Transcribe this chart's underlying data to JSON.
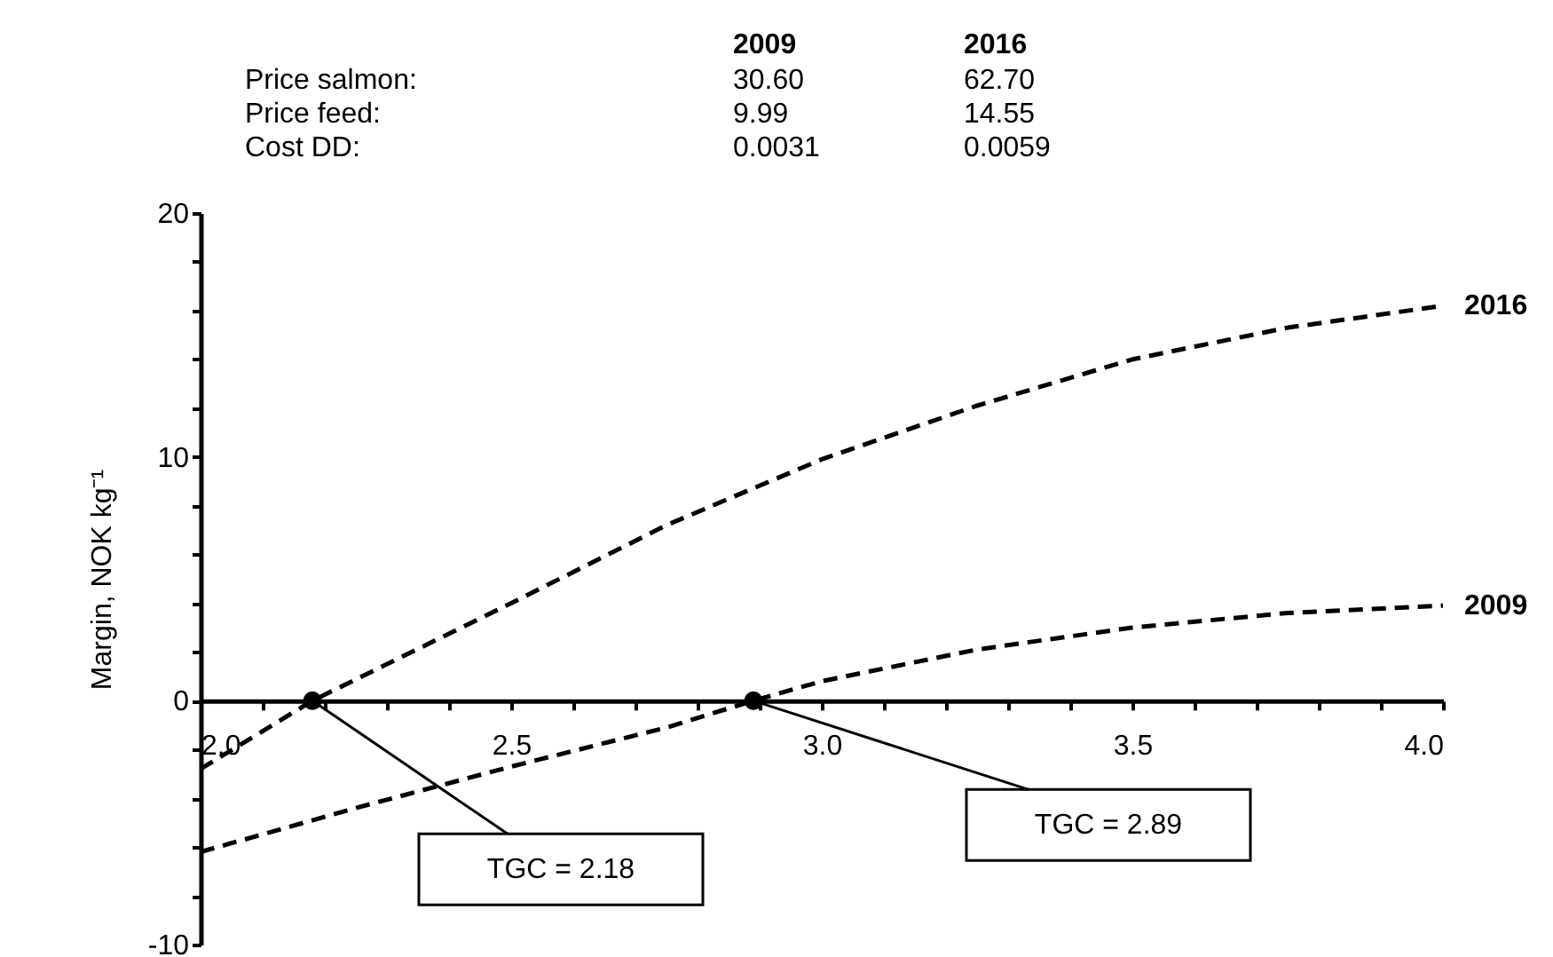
{
  "chart_data": {
    "type": "line",
    "ylabel": "Margin, NOK kg⁻¹",
    "x": [
      2.0,
      2.18,
      2.5,
      2.75,
      3.0,
      3.25,
      3.5,
      3.75,
      4.0
    ],
    "series": [
      {
        "name": "2016",
        "color": "#000000",
        "values": [
          -2.8,
          0,
          4.0,
          7.2,
          9.9,
          12.1,
          14.0,
          15.3,
          16.2
        ]
      },
      {
        "name": "2009",
        "color": "#000000",
        "x": [
          2.0,
          2.25,
          2.5,
          2.75,
          2.89,
          3.0,
          3.25,
          3.5,
          3.75,
          4.0
        ],
        "values": [
          -6.2,
          -4.4,
          -2.7,
          -1.1,
          0,
          0.8,
          2.1,
          3.0,
          3.6,
          3.9
        ]
      }
    ],
    "xlim": [
      2.0,
      4.0
    ],
    "ylim": [
      -10,
      20
    ],
    "xticks": [
      {
        "value": 2.0,
        "label": "2.0"
      },
      {
        "value": 2.1,
        "label": null
      },
      {
        "value": 2.2,
        "label": null
      },
      {
        "value": 2.3,
        "label": null
      },
      {
        "value": 2.4,
        "label": null
      },
      {
        "value": 2.5,
        "label": "2.5"
      },
      {
        "value": 2.6,
        "label": null
      },
      {
        "value": 2.7,
        "label": null
      },
      {
        "value": 2.8,
        "label": null
      },
      {
        "value": 2.9,
        "label": null
      },
      {
        "value": 3.0,
        "label": "3.0"
      },
      {
        "value": 3.1,
        "label": null
      },
      {
        "value": 3.2,
        "label": null
      },
      {
        "value": 3.3,
        "label": null
      },
      {
        "value": 3.4,
        "label": null
      },
      {
        "value": 3.5,
        "label": "3.5"
      },
      {
        "value": 3.6,
        "label": null
      },
      {
        "value": 3.7,
        "label": null
      },
      {
        "value": 3.8,
        "label": null
      },
      {
        "value": 3.9,
        "label": null
      },
      {
        "value": 4.0,
        "label": "4.0"
      }
    ],
    "yticks": [
      -10,
      {
        "value": -8,
        "label": null
      },
      {
        "value": -6,
        "label": null
      },
      {
        "value": -4,
        "label": null
      },
      {
        "value": -2,
        "label": null
      },
      0,
      {
        "value": 2,
        "label": null
      },
      {
        "value": 4,
        "label": null
      },
      {
        "value": 6,
        "label": null
      },
      {
        "value": 8,
        "label": null
      },
      10,
      {
        "value": 12,
        "label": null
      },
      {
        "value": 14,
        "label": null
      },
      {
        "value": 16,
        "label": null
      },
      {
        "value": 18,
        "label": null
      },
      20
    ],
    "annotations": [
      "2009",
      "2016",
      "Price salmon:",
      "30.60",
      "62.70",
      "Price feed:",
      "9.99",
      "14.55",
      "Cost DD:",
      "0.0031",
      "0.0059",
      {
        "text": "TGC = 2.18",
        "x": 2.18,
        "y": 0
      },
      {
        "text": "TGC = 2.89",
        "x": 2.89,
        "y": 0
      }
    ],
    "line_style": "dashed",
    "marker": "none",
    "grid": false
  }
}
